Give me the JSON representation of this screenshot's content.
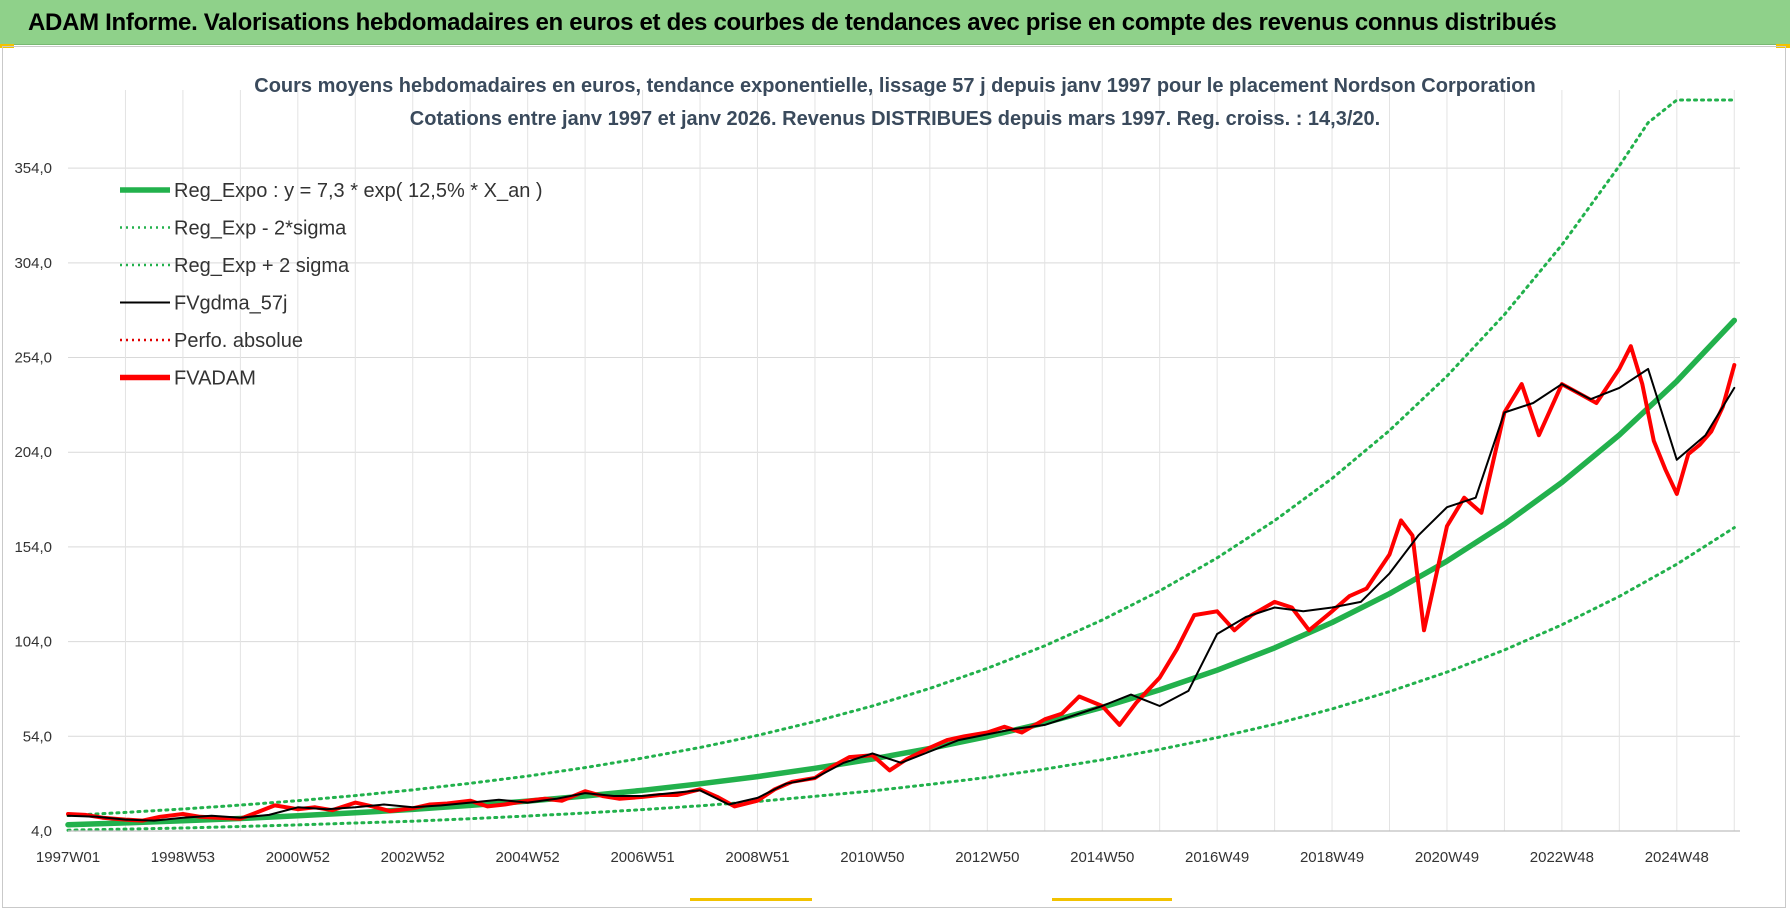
{
  "header": {
    "banner_title": "ADAM Informe. Valorisations hebdomadaires en euros et des courbes de tendances avec prise en compte des revenus connus distribués"
  },
  "colors": {
    "banner_bg": "#8fd18a",
    "reg_expo": "#22b14c",
    "sigma_bands": "#22b14c",
    "fvgdma": "#000000",
    "perfo": "#e00000",
    "fvadam": "#ff0000",
    "corner_marks": "#f2c200"
  },
  "chart_data": {
    "type": "line",
    "title_lines": [
      "Cours moyens hebdomadaires en euros, tendance exponentielle, lissage 57 j depuis janv 1997  pour le placement Nordson Corporation",
      "Cotations entre janv 1997 et janv 2026. Revenus DISTRIBUES depuis mars 1997. Reg. croiss. : 14,3/20."
    ],
    "xlabel": "",
    "ylabel": "",
    "x_range": [
      1997.0,
      2026.1
    ],
    "ylim": [
      4,
      390
    ],
    "grid": true,
    "legend_position": "top-left",
    "y_ticks": [
      "4,0",
      "54,0",
      "104,0",
      "154,0",
      "204,0",
      "254,0",
      "304,0",
      "354,0"
    ],
    "y_tick_values": [
      4,
      54,
      104,
      154,
      204,
      254,
      304,
      354
    ],
    "x_ticks": [
      "1997W01",
      "1998W53",
      "2000W52",
      "2002W52",
      "2004W52",
      "2006W51",
      "2008W51",
      "2010W50",
      "2012W50",
      "2014W50",
      "2016W49",
      "2018W49",
      "2020W49",
      "2022W48",
      "2024W48"
    ],
    "x_tick_values": [
      1997.0,
      1999.0,
      2001.0,
      2003.0,
      2005.0,
      2007.0,
      2009.0,
      2011.0,
      2013.0,
      2015.0,
      2017.0,
      2019.0,
      2021.0,
      2023.0,
      2025.0
    ],
    "series": [
      {
        "name": "Reg_Expo : y = 7,3 * exp( 12,5% *  X_an )",
        "style": "solid-thick",
        "color": "#22b14c",
        "x": [
          1997.0,
          1998.0,
          1999.0,
          2000.0,
          2001.0,
          2002.0,
          2003.0,
          2004.0,
          2005.0,
          2006.0,
          2007.0,
          2008.0,
          2009.0,
          2010.0,
          2011.0,
          2012.0,
          2013.0,
          2014.0,
          2015.0,
          2016.0,
          2017.0,
          2018.0,
          2019.0,
          2020.0,
          2021.0,
          2022.0,
          2023.0,
          2024.0,
          2025.0,
          2026.0
        ],
        "y": [
          7.3,
          8.3,
          9.4,
          10.6,
          12.0,
          13.6,
          15.4,
          17.5,
          19.8,
          22.5,
          25.5,
          28.9,
          32.7,
          37.1,
          42.0,
          47.6,
          53.9,
          61.1,
          69.3,
          78.5,
          88.9,
          100.7,
          114.1,
          129.3,
          146.5,
          166.0,
          188.1,
          213.1,
          241.5,
          273.6
        ]
      },
      {
        "name": "Reg_Exp - 2*sigma",
        "style": "dotted",
        "color": "#22b14c",
        "x": [
          1997.0,
          1998.0,
          1999.0,
          2000.0,
          2001.0,
          2002.0,
          2003.0,
          2004.0,
          2005.0,
          2006.0,
          2007.0,
          2008.0,
          2009.0,
          2010.0,
          2011.0,
          2012.0,
          2013.0,
          2014.0,
          2015.0,
          2016.0,
          2017.0,
          2018.0,
          2019.0,
          2020.0,
          2021.0,
          2022.0,
          2023.0,
          2024.0,
          2025.0,
          2026.0
        ],
        "y": [
          4.4,
          5.0,
          5.6,
          6.4,
          7.2,
          8.2,
          9.2,
          10.5,
          11.9,
          13.5,
          15.3,
          17.3,
          19.6,
          22.3,
          25.2,
          28.6,
          32.3,
          36.7,
          41.6,
          47.1,
          53.3,
          60.4,
          68.5,
          77.6,
          87.9,
          99.6,
          112.9,
          127.9,
          144.9,
          164.2
        ]
      },
      {
        "name": "Reg_Exp + 2 sigma",
        "style": "dotted",
        "color": "#22b14c",
        "x": [
          1997.0,
          1998.0,
          1999.0,
          2000.0,
          2001.0,
          2002.0,
          2003.0,
          2004.0,
          2005.0,
          2006.0,
          2007.0,
          2008.0,
          2009.0,
          2010.0,
          2011.0,
          2012.0,
          2013.0,
          2014.0,
          2015.0,
          2016.0,
          2017.0,
          2018.0,
          2019.0,
          2020.0,
          2021.0,
          2022.0,
          2023.0,
          2024.0,
          2024.5,
          2025.0,
          2025.5,
          2026.0
        ],
        "y": [
          12.2,
          13.8,
          15.6,
          17.7,
          20.0,
          22.7,
          25.7,
          29.2,
          33.0,
          37.5,
          42.5,
          48.1,
          54.5,
          61.8,
          70.0,
          79.3,
          89.9,
          101.8,
          115.4,
          130.8,
          148.2,
          167.9,
          190.2,
          215.5,
          244.2,
          276.7,
          313.5,
          355.2,
          378.0,
          390.0,
          390.0,
          390.0
        ]
      },
      {
        "name": "FVgdma_57j",
        "style": "solid-thin",
        "color": "#000000",
        "x": [
          1997.0,
          1997.5,
          1998.0,
          1998.5,
          1999.0,
          1999.5,
          2000.0,
          2000.5,
          2001.0,
          2001.5,
          2002.0,
          2002.5,
          2003.0,
          2003.5,
          2004.0,
          2004.5,
          2005.0,
          2005.5,
          2006.0,
          2006.5,
          2007.0,
          2007.5,
          2008.0,
          2008.5,
          2009.0,
          2009.5,
          2010.0,
          2010.5,
          2011.0,
          2011.5,
          2012.0,
          2012.5,
          2013.0,
          2013.5,
          2014.0,
          2014.5,
          2015.0,
          2015.5,
          2016.0,
          2016.5,
          2017.0,
          2017.5,
          2018.0,
          2018.5,
          2019.0,
          2019.5,
          2020.0,
          2020.5,
          2021.0,
          2021.5,
          2022.0,
          2022.5,
          2023.0,
          2023.5,
          2024.0,
          2024.5,
          2025.0,
          2025.5,
          2026.0
        ],
        "y": [
          12.0,
          11.5,
          10.0,
          9.5,
          11.0,
          12.0,
          11.0,
          12.5,
          16.5,
          15.5,
          16.5,
          18.0,
          16.5,
          17.5,
          19.0,
          20.5,
          19.0,
          21.0,
          24.0,
          22.5,
          22.5,
          24.0,
          25.5,
          18.0,
          21.5,
          29.0,
          32.0,
          40.0,
          45.0,
          40.0,
          46.0,
          52.0,
          55.0,
          58.0,
          60.0,
          65.0,
          70.0,
          76.0,
          70.0,
          78.0,
          108.0,
          117.0,
          122.0,
          120.0,
          122.0,
          125.0,
          140.0,
          160.0,
          175.0,
          180.0,
          225.0,
          230.0,
          240.0,
          232.0,
          238.0,
          248.0,
          200.0,
          213.0,
          238.0
        ]
      },
      {
        "name": "Perfo. absolue",
        "style": "dotted",
        "color": "#e00000",
        "x": [],
        "y": []
      },
      {
        "name": "FVADAM",
        "style": "solid-thick",
        "color": "#ff0000",
        "x": [
          1997.0,
          1997.3,
          1997.6,
          1998.0,
          1998.3,
          1998.6,
          1999.0,
          1999.3,
          1999.6,
          2000.0,
          2000.3,
          2000.6,
          2001.0,
          2001.3,
          2001.6,
          2002.0,
          2002.3,
          2002.6,
          2003.0,
          2003.3,
          2003.6,
          2004.0,
          2004.3,
          2004.6,
          2005.0,
          2005.3,
          2005.6,
          2006.0,
          2006.3,
          2006.6,
          2007.0,
          2007.3,
          2007.6,
          2008.0,
          2008.3,
          2008.6,
          2009.0,
          2009.3,
          2009.6,
          2010.0,
          2010.3,
          2010.6,
          2011.0,
          2011.3,
          2011.6,
          2012.0,
          2012.3,
          2012.6,
          2013.0,
          2013.3,
          2013.6,
          2014.0,
          2014.3,
          2014.6,
          2015.0,
          2015.3,
          2015.6,
          2016.0,
          2016.3,
          2016.6,
          2017.0,
          2017.3,
          2017.6,
          2018.0,
          2018.3,
          2018.6,
          2019.0,
          2019.3,
          2019.6,
          2020.0,
          2020.2,
          2020.4,
          2020.6,
          2021.0,
          2021.3,
          2021.6,
          2022.0,
          2022.3,
          2022.6,
          2023.0,
          2023.3,
          2023.6,
          2024.0,
          2024.2,
          2024.4,
          2024.6,
          2024.8,
          2025.0,
          2025.2,
          2025.4,
          2025.6,
          2025.8,
          2026.0
        ],
        "y": [
          13.0,
          12.5,
          11.0,
          10.0,
          9.5,
          11.5,
          13.0,
          11.5,
          11.0,
          10.5,
          14.0,
          17.5,
          15.5,
          16.5,
          15.0,
          19.0,
          17.0,
          14.5,
          16.0,
          18.0,
          18.5,
          20.0,
          17.0,
          18.0,
          20.0,
          21.0,
          20.0,
          25.0,
          22.5,
          21.0,
          22.0,
          23.0,
          23.0,
          26.0,
          22.0,
          17.0,
          20.0,
          26.0,
          30.0,
          32.0,
          38.0,
          43.0,
          44.0,
          36.0,
          42.0,
          48.0,
          52.0,
          54.0,
          56.0,
          59.0,
          56.0,
          63.0,
          66.0,
          75.0,
          70.0,
          60.0,
          72.0,
          85.0,
          100.0,
          118.0,
          120.0,
          110.0,
          118.0,
          125.0,
          122.0,
          110.0,
          120.0,
          128.0,
          132.0,
          150.0,
          168.0,
          160.0,
          110.0,
          165.0,
          180.0,
          172.0,
          225.0,
          240.0,
          213.0,
          240.0,
          235.0,
          230.0,
          248.0,
          260.0,
          240.0,
          210.0,
          195.0,
          182.0,
          203.0,
          208.0,
          215.0,
          228.0,
          250.0
        ]
      }
    ]
  }
}
